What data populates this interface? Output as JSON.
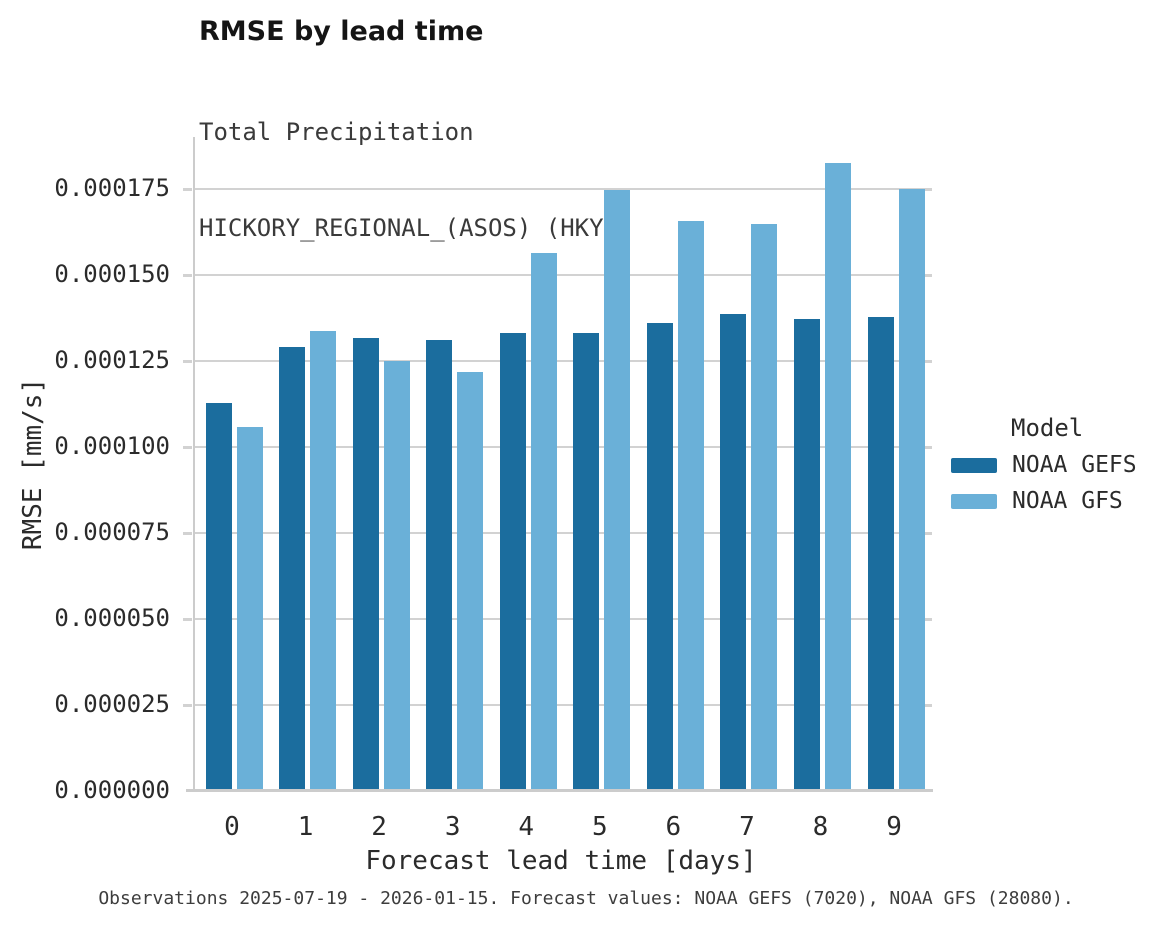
{
  "title": "RMSE by lead time",
  "subtitle_line1": "Total Precipitation",
  "subtitle_line2": "HICKORY_REGIONAL_(ASOS) (HKY)",
  "caption": "Observations 2025-07-19 - 2026-01-15. Forecast values: NOAA GEFS (7020), NOAA GFS (28080).",
  "legend": {
    "title": "Model",
    "items": [
      {
        "label": "NOAA GEFS",
        "color": "#1b6d9e"
      },
      {
        "label": "NOAA GFS",
        "color": "#6ab0d8"
      }
    ]
  },
  "colors": {
    "gefs_dark_blue": "#1b6d9e",
    "gfs_light_blue": "#6ab0d8",
    "gridline_gray": "#d2d2d2",
    "axis_gray": "#cccccc",
    "text_dark": "#2b2b2b"
  },
  "chart_data": {
    "type": "bar",
    "title": "RMSE by lead time",
    "subtitle": [
      "Total Precipitation",
      "HICKORY_REGIONAL_(ASOS) (HKY)"
    ],
    "xlabel": "Forecast lead time [days]",
    "ylabel": "RMSE [mm/s]",
    "categories": [
      "0",
      "1",
      "2",
      "3",
      "4",
      "5",
      "6",
      "7",
      "8",
      "9"
    ],
    "series": [
      {
        "name": "NOAA GEFS",
        "color": "#1b6d9e",
        "values": [
          0.0001127,
          0.0001289,
          0.0001316,
          0.000131,
          0.0001331,
          0.0001331,
          0.000136,
          0.0001385,
          0.0001372,
          0.0001377
        ]
      },
      {
        "name": "NOAA GFS",
        "color": "#6ab0d8",
        "values": [
          0.0001057,
          0.0001337,
          0.000125,
          0.0001216,
          0.0001562,
          0.0001745,
          0.0001656,
          0.0001647,
          0.0001824,
          0.0001749
        ]
      }
    ],
    "ylim": [
      0,
      0.00019
    ],
    "yticks": [
      0,
      2.5e-05,
      5e-05,
      7.5e-05,
      0.0001,
      0.000125,
      0.00015,
      0.000175
    ],
    "ytick_labels": [
      "0.000000",
      "0.000025",
      "0.000050",
      "0.000075",
      "0.000100",
      "0.000125",
      "0.000150",
      "0.000175"
    ],
    "grid": true,
    "legend_position": "right",
    "legend_title": "Model"
  }
}
